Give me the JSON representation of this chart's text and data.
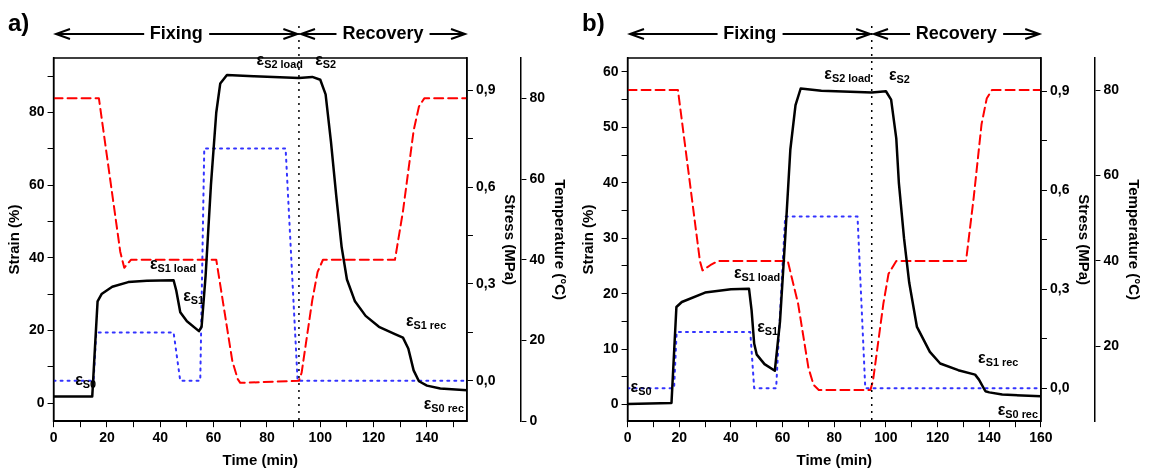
{
  "chart_data": [
    {
      "type": "line",
      "title": "a)",
      "xlabel": "Time (min)",
      "ylabel": "Strain (%)",
      "y2label": "Stress (MPa)",
      "y3label": "Temperature (°C)",
      "marker": "none",
      "xlim": [
        0,
        155
      ],
      "xticks": [
        0,
        {
          "value": 10,
          "label": null
        },
        20,
        {
          "value": 30,
          "label": null
        },
        40,
        {
          "value": 50,
          "label": null
        },
        60,
        {
          "value": 70,
          "label": null
        },
        80,
        {
          "value": 90,
          "label": null
        },
        100,
        {
          "value": 110,
          "label": null
        },
        120,
        {
          "value": 130,
          "label": null
        },
        140,
        {
          "value": 150,
          "label": null
        }
      ],
      "ylim": [
        -5,
        95
      ],
      "yticks": [
        0,
        {
          "value": 10,
          "label": null
        },
        20,
        {
          "value": 30,
          "label": null
        },
        40,
        {
          "value": 50,
          "label": null
        },
        60,
        {
          "value": 70,
          "label": null
        },
        80,
        {
          "value": 90,
          "label": null
        }
      ],
      "y2lim": [
        -0.125,
        1.0
      ],
      "y2ticks": [
        {
          "value": 0,
          "label": "0,0"
        },
        {
          "value": 0.15,
          "label": null
        },
        {
          "value": 0.3,
          "label": "0,3"
        },
        {
          "value": 0.45,
          "label": null
        },
        {
          "value": 0.6,
          "label": "0,6"
        },
        {
          "value": 0.75,
          "label": null
        },
        {
          "value": 0.9,
          "label": "0,9"
        }
      ],
      "y3lim": [
        0,
        90
      ],
      "y3ticks": [
        0,
        20,
        40,
        60,
        80
      ],
      "series": [
        {
          "color": "#000000",
          "line_style": "solid",
          "x": [
            0,
            14.5,
            15.5,
            16.5,
            18,
            22,
            28,
            35,
            45,
            46,
            47.5,
            50,
            54.5,
            55.5,
            57,
            59,
            61,
            62.5,
            65,
            75,
            92,
            97,
            100,
            102,
            104,
            106,
            108,
            110,
            113,
            117,
            122,
            128,
            131,
            133,
            135,
            137,
            140,
            145,
            155
          ],
          "values": [
            1.8,
            1.8,
            15,
            28,
            30,
            32,
            33.3,
            33.7,
            33.8,
            31,
            25,
            22.5,
            19.8,
            21,
            35,
            60,
            80,
            88,
            90.3,
            90,
            89.5,
            89.8,
            89,
            85,
            72,
            57,
            43,
            34,
            28,
            24,
            21,
            19,
            18,
            15,
            9,
            6,
            4.8,
            4,
            3.5
          ]
        },
        {
          "color": "#ff0000",
          "line_style": "dashed",
          "axis": "y3",
          "x": [
            0,
            17,
            25,
            26.5,
            29,
            61,
            67,
            69,
            70,
            92,
            93,
            97,
            99,
            101,
            128,
            131,
            135,
            137,
            139,
            155
          ],
          "values": [
            80,
            80,
            42,
            38,
            40,
            40,
            15,
            10.5,
            9.5,
            10,
            12,
            30,
            37,
            40,
            40,
            52,
            72,
            78,
            80,
            80
          ]
        },
        {
          "color": "#3333ff",
          "line_style": "dotted",
          "axis": "y2",
          "x": [
            0,
            15,
            16,
            45,
            47.5,
            55,
            56.5,
            87,
            91.5,
            155
          ],
          "values": [
            0,
            0,
            0.15,
            0.15,
            0,
            0,
            0.72,
            0.72,
            0,
            0
          ]
        }
      ],
      "ref_lines": [
        {
          "axis": "x",
          "value": 92,
          "line_style": "dotted",
          "color": "#000000"
        }
      ],
      "annotations": [
        "Fixing",
        "Recovery",
        {
          "text": "ε$_{S0}$",
          "x": 7,
          "y": 1.8
        },
        {
          "text": "ε$_{S1 load}$",
          "x": 35,
          "y": 33.7
        },
        {
          "text": "ε$_{S1}$",
          "x": 47.5,
          "y": 25
        },
        {
          "text": "ε$_{S2 load}$",
          "x": 75,
          "y": 90
        },
        {
          "text": "ε$_{S2}$",
          "x": 97,
          "y": 89.8
        },
        {
          "text": "ε$_{S1 rec}$",
          "x": 131,
          "y": 18
        },
        {
          "text": "ε$_{S0 rec}$",
          "x": 145,
          "y": 4
        }
      ]
    },
    {
      "type": "line",
      "title": "b)",
      "xlabel": "Time (min)",
      "ylabel": "Strain (%)",
      "y2label": "Stress (MPa)",
      "y3label": "Temperature (°C)",
      "marker": "none",
      "xlim": [
        0,
        160
      ],
      "xticks": [
        0,
        {
          "value": 10,
          "label": null
        },
        20,
        {
          "value": 30,
          "label": null
        },
        40,
        {
          "value": 50,
          "label": null
        },
        60,
        {
          "value": 70,
          "label": null
        },
        80,
        {
          "value": 90,
          "label": null
        },
        100,
        {
          "value": 110,
          "label": null
        },
        120,
        {
          "value": 130,
          "label": null
        },
        140,
        {
          "value": 150,
          "label": null
        },
        160
      ],
      "ylim": [
        -3,
        62.5
      ],
      "yticks": [
        0,
        {
          "value": 5,
          "label": null
        },
        10,
        {
          "value": 15,
          "label": null
        },
        20,
        {
          "value": 25,
          "label": null
        },
        30,
        {
          "value": 35,
          "label": null
        },
        40,
        {
          "value": 45,
          "label": null
        },
        50,
        {
          "value": 55,
          "label": null
        },
        60
      ],
      "y2lim": [
        -0.1,
        1.0
      ],
      "y2ticks": [
        {
          "value": 0,
          "label": "0,0"
        },
        {
          "value": 0.15,
          "label": null
        },
        {
          "value": 0.3,
          "label": "0,3"
        },
        {
          "value": 0.45,
          "label": null
        },
        {
          "value": 0.6,
          "label": "0,6"
        },
        {
          "value": 0.75,
          "label": null
        },
        {
          "value": 0.9,
          "label": "0,9"
        }
      ],
      "y3lim": [
        2.5,
        87.5
      ],
      "y3ticks": [
        20,
        40,
        60,
        80
      ],
      "series": [
        {
          "color": "#000000",
          "line_style": "solid",
          "x": [
            0,
            17,
            18.9,
            21,
            30,
            40,
            47,
            48,
            49,
            50,
            53,
            57,
            59,
            61,
            63,
            65,
            67,
            75,
            94.5,
            100,
            102,
            104,
            105,
            107,
            109,
            112,
            117,
            121,
            128,
            134.5,
            136,
            138.5,
            140,
            145,
            160
          ],
          "values": [
            0.1,
            0.3,
            17.6,
            18.5,
            20.2,
            20.8,
            20.9,
            17,
            11,
            9,
            7.3,
            6.1,
            15,
            30,
            46,
            54,
            57,
            56.6,
            56.3,
            56.5,
            55,
            48,
            40,
            30,
            22,
            14,
            9.5,
            7.4,
            6.2,
            5.4,
            4.5,
            2.4,
            2.2,
            1.8,
            1.5
          ]
        },
        {
          "color": "#ff0000",
          "line_style": "dashed",
          "axis": "y3",
          "x": [
            0,
            19.5,
            28,
            29,
            32,
            35,
            62,
            66,
            70,
            72,
            74,
            94,
            95,
            99,
            101,
            104,
            131,
            134,
            137,
            139,
            141,
            160
          ],
          "values": [
            80,
            80,
            40,
            37.8,
            39,
            40,
            40,
            30,
            15,
            11,
            9.8,
            9.8,
            12,
            30,
            37,
            40,
            40,
            55,
            72,
            78,
            80,
            80
          ]
        },
        {
          "color": "#3333ff",
          "line_style": "dotted",
          "axis": "y2",
          "x": [
            0,
            18,
            19,
            47.5,
            49,
            57.5,
            61,
            89,
            92,
            160
          ],
          "values": [
            0,
            0,
            0.17,
            0.17,
            0,
            0,
            0.52,
            0.52,
            0,
            0
          ]
        }
      ],
      "ref_lines": [
        {
          "axis": "x",
          "value": 94.5,
          "line_style": "dotted",
          "color": "#000000"
        }
      ],
      "annotations": [
        "Fixing",
        "Recovery",
        {
          "text": "ε$_{S0}$",
          "x": 0,
          "y": 0.1
        },
        {
          "text": "ε$_{S1 load}$",
          "x": 40,
          "y": 20.8
        },
        {
          "text": "ε$_{S1}$",
          "x": 49,
          "y": 11
        },
        {
          "text": "ε$_{S2 load}$",
          "x": 75,
          "y": 56.6
        },
        {
          "text": "ε$_{S2}$",
          "x": 100,
          "y": 56.5
        },
        {
          "text": "ε$_{S1 rec}$",
          "x": 134.5,
          "y": 5.4
        },
        {
          "text": "ε$_{S0 rec}$",
          "x": 145,
          "y": 1.8
        }
      ]
    }
  ]
}
